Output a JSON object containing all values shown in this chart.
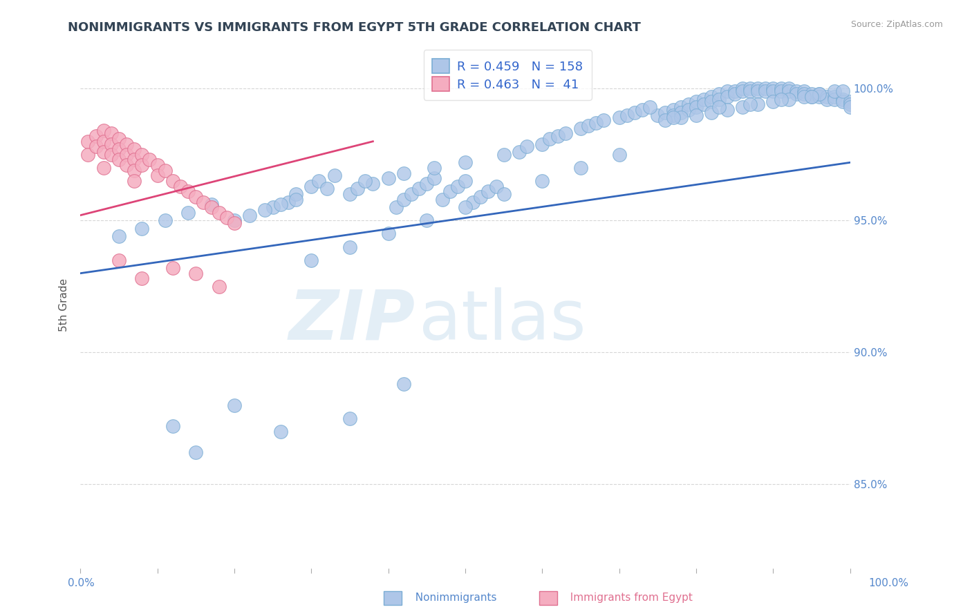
{
  "title": "NONIMMIGRANTS VS IMMIGRANTS FROM EGYPT 5TH GRADE CORRELATION CHART",
  "source": "Source: ZipAtlas.com",
  "ylabel": "5th Grade",
  "yaxis_labels": [
    "85.0%",
    "90.0%",
    "95.0%",
    "100.0%"
  ],
  "yaxis_values": [
    0.85,
    0.9,
    0.95,
    1.0
  ],
  "xlim": [
    0.0,
    1.0
  ],
  "ylim": [
    0.818,
    1.018
  ],
  "nonimm_color": "#aec6e8",
  "nonimm_edge": "#7aadd4",
  "imm_color": "#f5adc0",
  "imm_edge": "#e07090",
  "trendline_nonimm_color": "#3366bb",
  "trendline_imm_color": "#dd4477",
  "legend_R_nonimm": "0.459",
  "legend_N_nonimm": "158",
  "legend_R_imm": "0.463",
  "legend_N_imm": "41",
  "legend_color": "#3366cc",
  "watermark_zip": "ZIP",
  "watermark_atlas": "atlas",
  "background": "#ffffff",
  "grid_color": "#cccccc",
  "nonimm_trend_x0": 0.0,
  "nonimm_trend_x1": 1.0,
  "nonimm_trend_y0": 0.93,
  "nonimm_trend_y1": 0.972,
  "imm_trend_x0": 0.0,
  "imm_trend_x1": 0.38,
  "imm_trend_y0": 0.952,
  "imm_trend_y1": 0.98
}
